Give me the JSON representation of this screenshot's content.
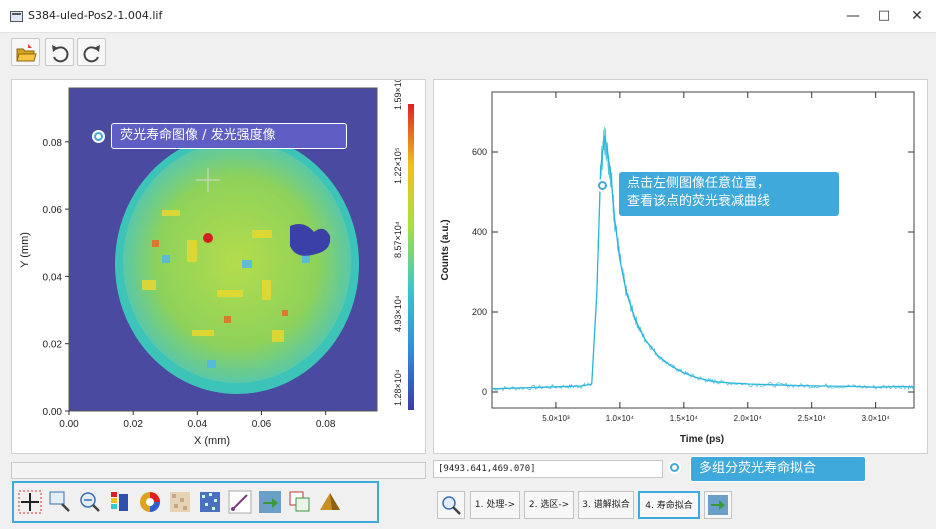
{
  "window": {
    "title": "S384-uled-Pos2-1.004.lif",
    "minimize": "—",
    "maximize": "□",
    "close": "✕"
  },
  "toolbar": {
    "items": [
      {
        "name": "open-folder-icon"
      },
      {
        "name": "undo-icon"
      },
      {
        "name": "redo-icon"
      }
    ]
  },
  "image_plot": {
    "callout": "荧光寿命图像 / 发光强度像",
    "xlabel": "X (mm)",
    "ylabel": "Y (mm)",
    "x_ticks": [
      "0.00",
      "0.02",
      "0.04",
      "0.06",
      "0.08"
    ],
    "y_ticks": [
      "0.00",
      "0.02",
      "0.04",
      "0.06",
      "0.08"
    ],
    "colorbar_ticks": [
      "1.28×10⁴",
      "4.93×10⁴",
      "8.57×10⁴",
      "1.22×10⁵",
      "1.59×10⁵"
    ]
  },
  "decay_plot": {
    "callout_line1": "点击左侧图像任意位置，",
    "callout_line2": "查看该点的荧光衰减曲线",
    "coord_readout": "[9493.641,469.070]"
  },
  "bottom": {
    "callout": "多组分荧光寿命拟合",
    "tools": [
      {
        "name": "crosshair-icon"
      },
      {
        "name": "zoom-rect-icon"
      },
      {
        "name": "zoom-out-icon"
      },
      {
        "name": "palette-icon"
      },
      {
        "name": "color-wheel-icon"
      },
      {
        "name": "texture-icon"
      },
      {
        "name": "noise-icon"
      },
      {
        "name": "line-tool-icon"
      },
      {
        "name": "export-icon"
      },
      {
        "name": "overlay-icon"
      },
      {
        "name": "peak-3d-icon"
      }
    ],
    "process_buttons": [
      "1. 处理->",
      "2. 选区->",
      "3. 谱解拟合",
      "4. 寿命拟合"
    ]
  },
  "chart_data": {
    "type": "line",
    "xlabel": "Time (ps)",
    "ylabel": "Counts (a.u.)",
    "xlim": [
      0,
      33000
    ],
    "ylim": [
      -40,
      750
    ],
    "x_ticks": [
      "5.0×10³",
      "1.0×10⁴",
      "1.5×10⁴",
      "2.0×10⁴",
      "2.5×10⁴",
      "3.0×10⁴"
    ],
    "x_tick_values": [
      5000,
      10000,
      15000,
      20000,
      25000,
      30000
    ],
    "y_ticks": [
      "0",
      "200",
      "400",
      "600"
    ],
    "y_tick_values": [
      0,
      200,
      400,
      600
    ],
    "series": [
      {
        "color": "#2cb5d8",
        "x": [
          0,
          2000,
          4000,
          6000,
          7000,
          7800,
          8200,
          8500,
          8800,
          9000,
          9300,
          9600,
          10000,
          10500,
          11000,
          11500,
          12000,
          13000,
          14000,
          15000,
          16000,
          17000,
          18000,
          20000,
          22000,
          24000,
          26000,
          28000,
          30000,
          32000,
          33000
        ],
        "y": [
          8,
          10,
          12,
          14,
          15,
          20,
          250,
          560,
          640,
          610,
          540,
          430,
          330,
          250,
          200,
          160,
          130,
          90,
          65,
          48,
          36,
          28,
          24,
          20,
          18,
          16,
          15,
          14,
          12,
          14,
          12
        ]
      }
    ]
  }
}
